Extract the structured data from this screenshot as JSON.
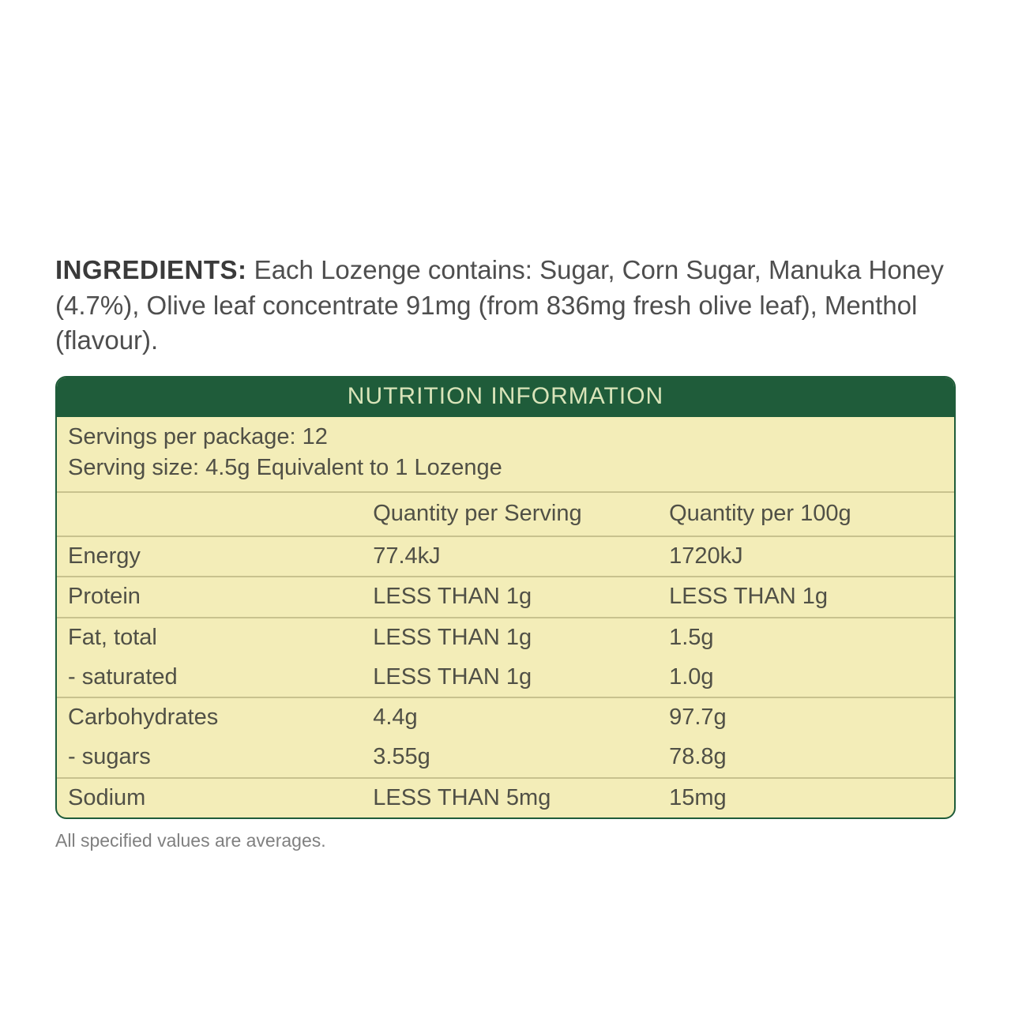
{
  "ingredients": {
    "label": "INGREDIENTS:",
    "text": " Each Lozenge contains: Sugar, Corn Sugar, Manuka Honey (4.7%), Olive leaf concentrate 91mg (from 836mg fresh olive leaf), Menthol (flavour)."
  },
  "panel": {
    "title": "NUTRITION INFORMATION",
    "servings_per_package": "Servings per package: 12",
    "serving_size": "Serving size: 4.5g Equivalent to 1 Lozenge",
    "columns": {
      "nutrient": "",
      "per_serving": "Quantity per Serving",
      "per_100g": "Quantity per 100g"
    },
    "rows": [
      {
        "nutrient": "Energy",
        "per_serving": "77.4kJ",
        "per_100g": "1720kJ"
      },
      {
        "nutrient": "Protein",
        "per_serving": "LESS THAN 1g",
        "per_100g": "LESS THAN 1g"
      },
      {
        "nutrient": "Fat, total",
        "per_serving": "LESS THAN 1g",
        "per_100g": "1.5g"
      },
      {
        "nutrient": "- saturated",
        "per_serving": "LESS THAN 1g",
        "per_100g": "1.0g"
      },
      {
        "nutrient": "Carbohydrates",
        "per_serving": "4.4g",
        "per_100g": "97.7g"
      },
      {
        "nutrient": "- sugars",
        "per_serving": "3.55g",
        "per_100g": "78.8g"
      },
      {
        "nutrient": "Sodium",
        "per_serving": "LESS THAN 5mg",
        "per_100g": "15mg"
      }
    ],
    "footnote": "All specified values are averages."
  },
  "style": {
    "type": "table",
    "header_bg": "#1f5c3a",
    "header_text": "#d9e4b9",
    "panel_bg": "#f3edb8",
    "border_color": "#1f5c3a",
    "rule_color": "#c8c28e",
    "body_text": "#505046",
    "page_bg": "#ffffff",
    "title_fontsize": 30,
    "body_fontsize": 29,
    "ingredients_fontsize": 33,
    "footnote_fontsize": 23,
    "border_radius": 14,
    "col_widths_pct": [
      34,
      33,
      33
    ]
  }
}
